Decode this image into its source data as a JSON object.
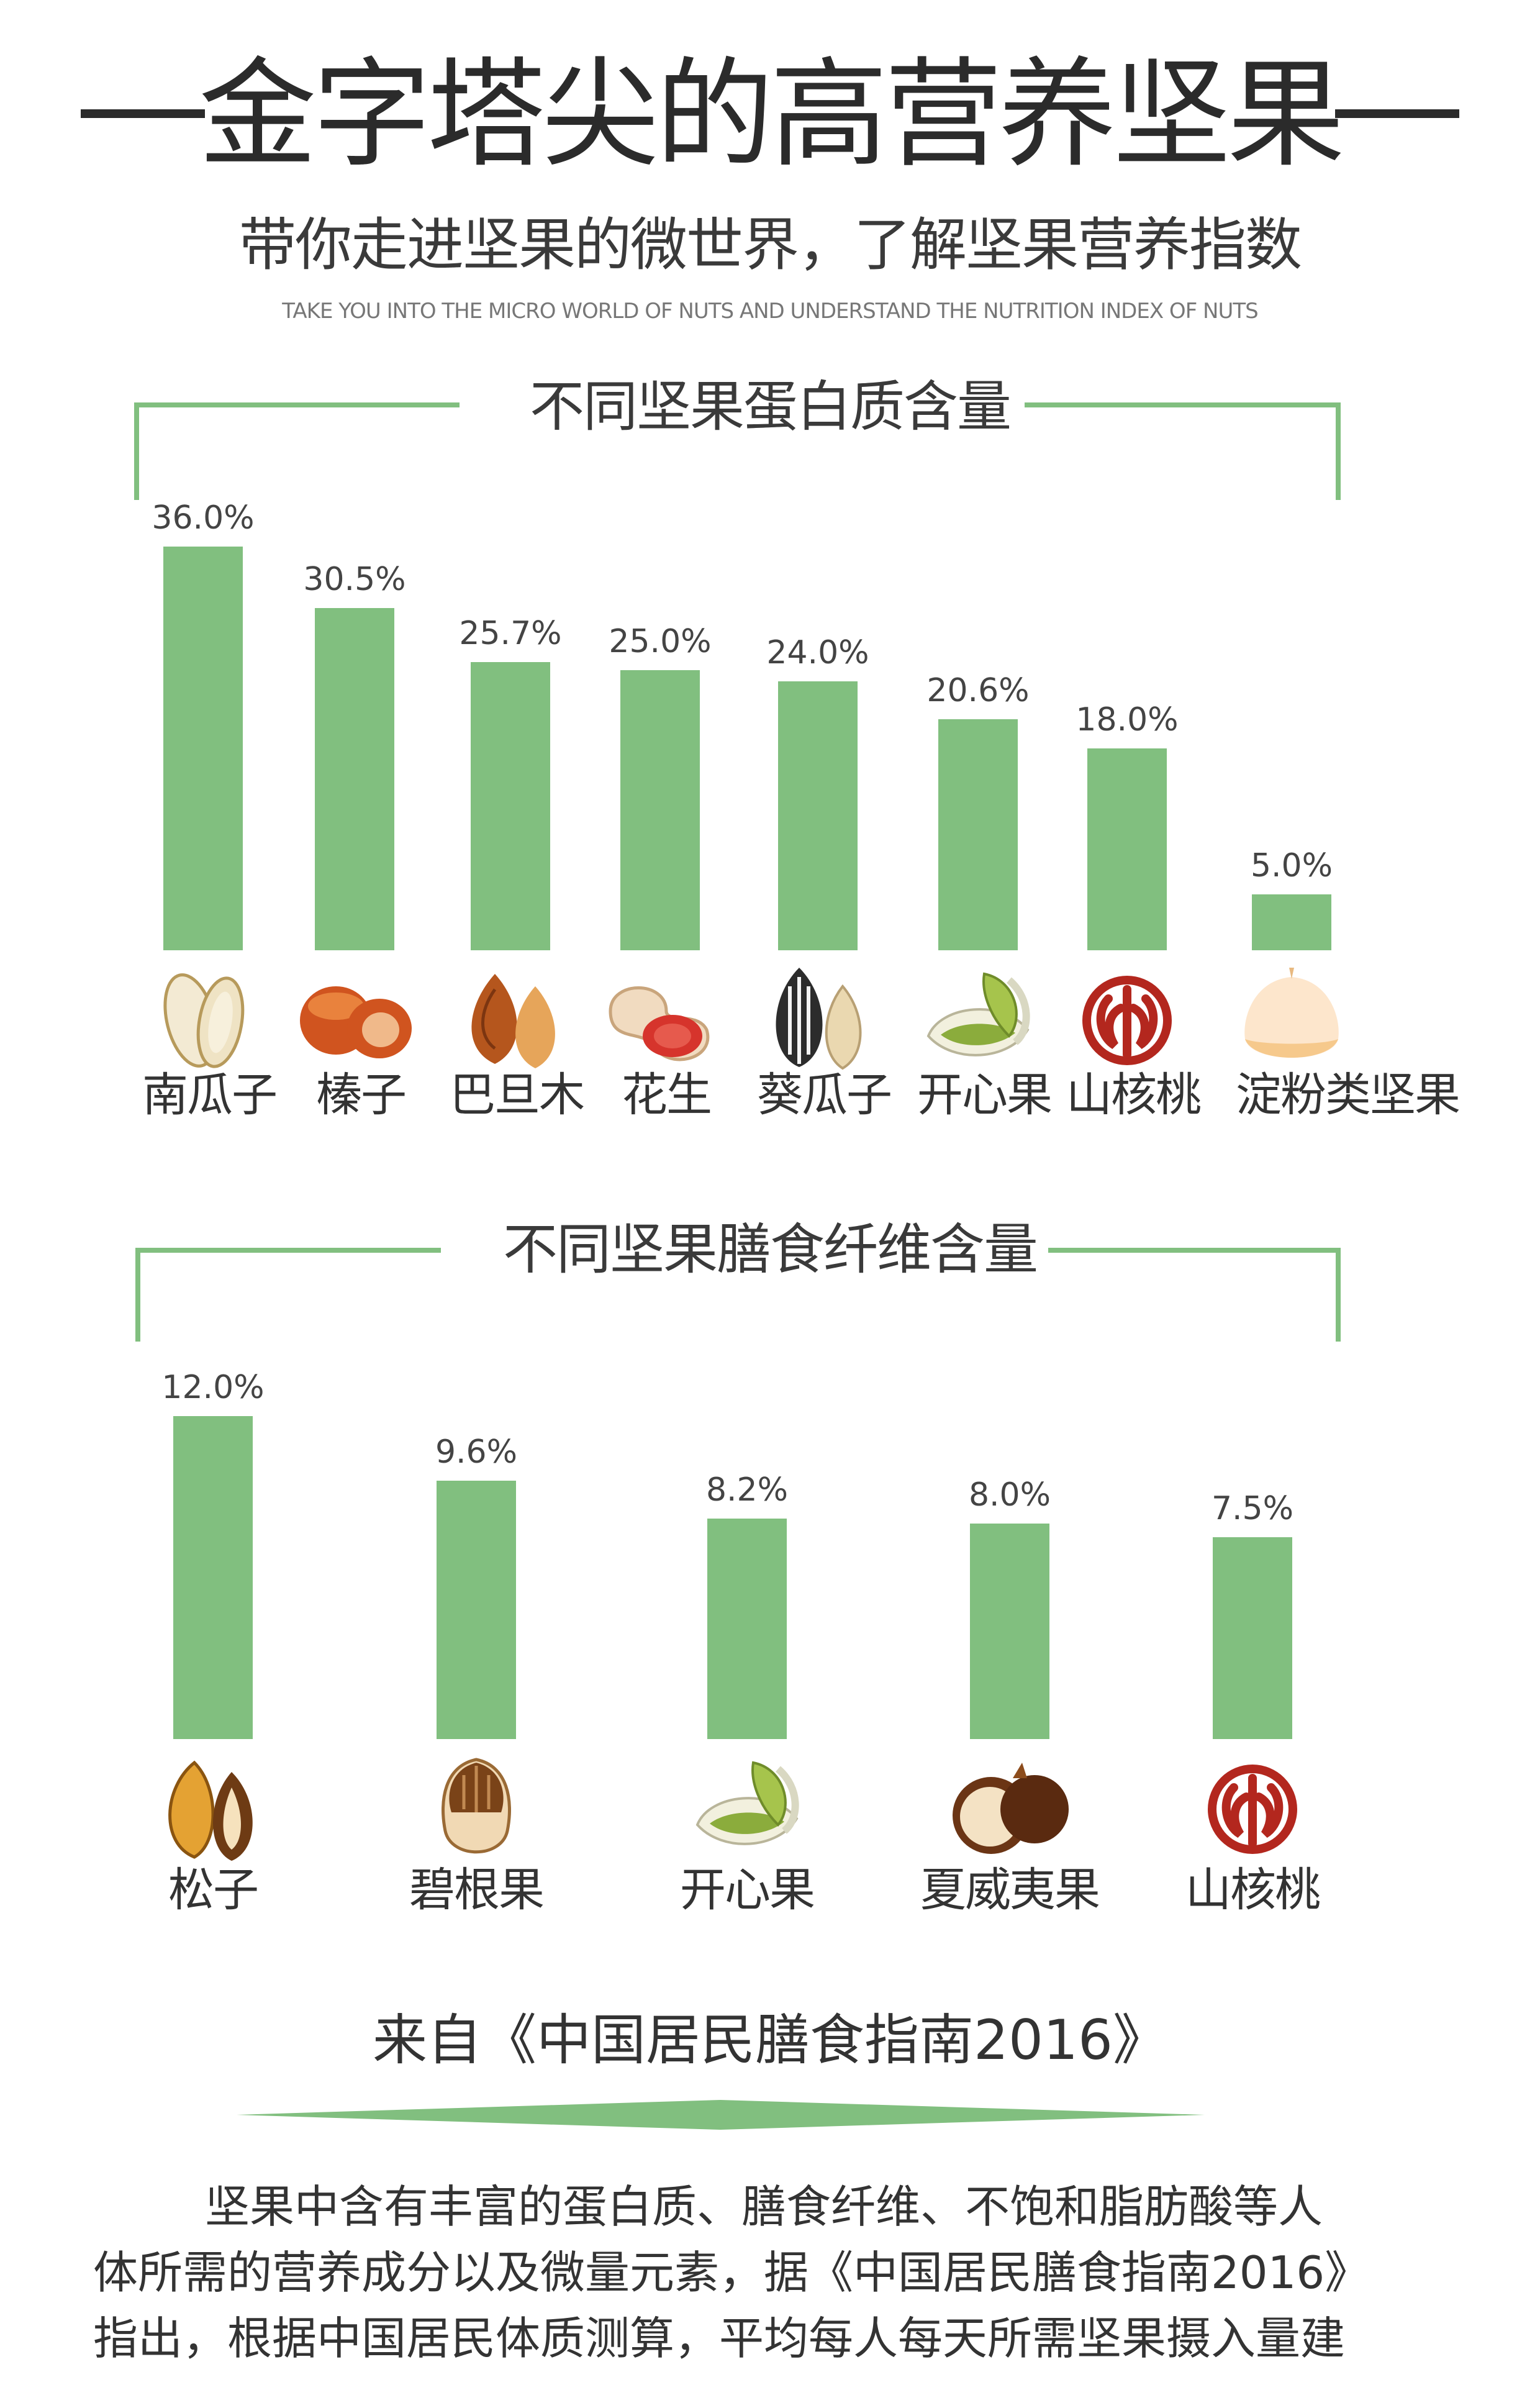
{
  "header": {
    "title": "金字塔尖的高营养坚果",
    "subtitle": "带你走进坚果的微世界，了解坚果营养指数",
    "subtitle_en": "TAKE YOU INTO THE MICRO WORLD OF NUTS AND UNDERSTAND THE NUTRITION INDEX OF NUTS"
  },
  "colors": {
    "bar": "#81bf7f",
    "frame": "#81bf7f",
    "text": "#333333"
  },
  "chart_data": [
    {
      "type": "bar",
      "title": "不同坚果蛋白质含量",
      "categories": [
        "南瓜子",
        "榛子",
        "巴旦木",
        "花生",
        "葵瓜子",
        "开心果",
        "山核桃",
        "淀粉类坚果"
      ],
      "values": [
        36.0,
        30.5,
        25.7,
        25.0,
        24.0,
        20.6,
        18.0,
        5.0
      ],
      "value_labels": [
        "36.0%",
        "30.5%",
        "25.7%",
        "25.0%",
        "24.0%",
        "20.6%",
        "18.0%",
        "5.0%"
      ],
      "icons": [
        "pumpkin-seed-icon",
        "hazelnut-icon",
        "almond-icon",
        "peanut-icon",
        "sunflower-seed-icon",
        "pistachio-icon",
        "walnut-icon",
        "chestnut-icon"
      ],
      "unit": "%",
      "ylim": [
        0,
        36
      ],
      "grid": false,
      "legend": "none"
    },
    {
      "type": "bar",
      "title": "不同坚果膳食纤维含量",
      "categories": [
        "松子",
        "碧根果",
        "开心果",
        "夏威夷果",
        "山核桃"
      ],
      "values": [
        12.0,
        9.6,
        8.2,
        8.0,
        7.5
      ],
      "value_labels": [
        "12.0%",
        "9.6%",
        "8.2%",
        "8.0%",
        "7.5%"
      ],
      "icons": [
        "pine-nut-icon",
        "pecan-icon",
        "pistachio-icon",
        "macadamia-icon",
        "walnut-icon"
      ],
      "unit": "%",
      "ylim": [
        0,
        12
      ],
      "grid": false,
      "legend": "none"
    }
  ],
  "source": "来自《中国居民膳食指南2016》",
  "paragraph": [
    "坚果中含有丰富的蛋白质、膳食纤维、不饱和脂肪酸等人",
    "体所需的营养成分以及微量元素，据《中国居民膳食指南2016》",
    "指出，根据中国居民体质测算，平均每人每天所需坚果摄入量建"
  ]
}
